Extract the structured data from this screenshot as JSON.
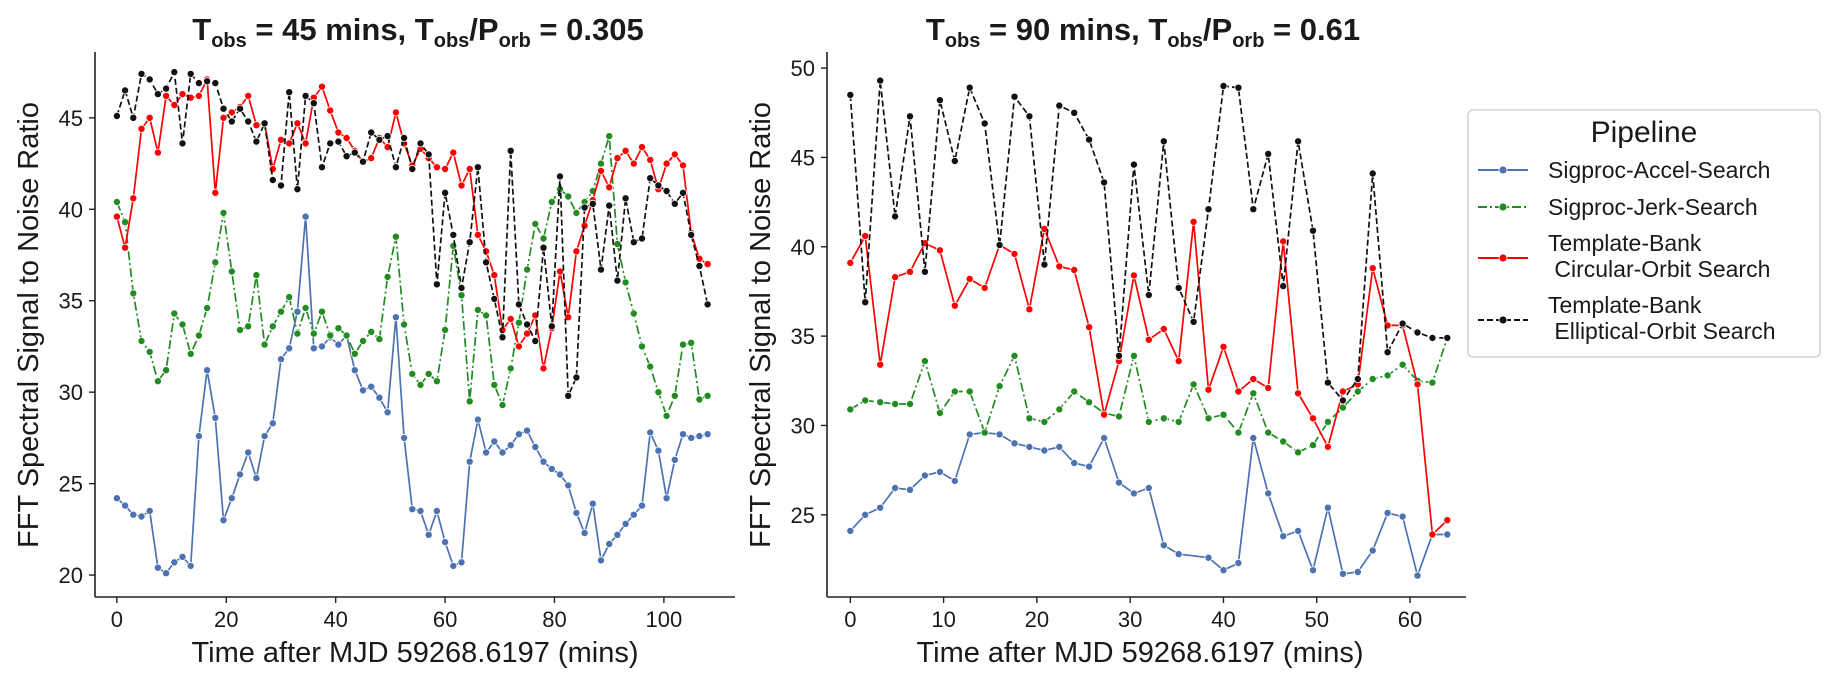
{
  "chart_data": [
    {
      "type": "line",
      "title": {
        "main": "T",
        "sub1": "obs",
        "mid": " = 45 mins, T",
        "sub2": "obs",
        "slash": "/P",
        "sub3": "orb",
        "end": " = 0.305"
      },
      "xlabel": "Time after MJD 59268.6197 (mins)",
      "ylabel": "FFT Spectral Signal to Noise Ratio",
      "xlim": [
        -4,
        113
      ],
      "ylim": [
        18.8,
        48.6
      ],
      "xticks": [
        0,
        20,
        40,
        60,
        80,
        100
      ],
      "yticks": [
        20,
        25,
        30,
        35,
        40,
        45
      ],
      "grid": false,
      "series": [
        {
          "name": "Sigproc-Accel-Search",
          "color": "#4c72b0",
          "dash": "solid",
          "marker": "circle",
          "x": [
            0,
            1.5,
            3,
            4.5,
            6,
            7.5,
            9,
            10.5,
            12,
            13.5,
            15,
            16.5,
            18,
            19.5,
            21,
            22.5,
            24,
            25.5,
            27,
            28.5,
            30,
            31.5,
            33,
            34.5,
            36,
            37.5,
            39,
            40.5,
            42,
            43.5,
            45,
            46.5,
            48,
            49.5,
            51,
            52.5,
            54,
            55.5,
            57,
            58.5,
            60,
            61.5,
            63,
            64.5,
            66,
            67.5,
            69,
            70.5,
            72,
            73.5,
            75,
            76.5,
            78,
            79.5,
            81,
            82.5,
            84,
            85.5,
            87,
            88.5,
            90,
            91.5,
            93,
            94.5,
            96,
            97.5,
            99,
            100.5,
            102,
            103.5,
            105,
            106.5,
            108
          ],
          "values": [
            24.2,
            23.8,
            23.3,
            23.2,
            23.5,
            20.4,
            20.1,
            20.7,
            21.0,
            20.5,
            27.6,
            31.2,
            28.6,
            23.0,
            24.2,
            25.5,
            26.7,
            25.3,
            27.6,
            28.3,
            31.8,
            32.4,
            34.4,
            39.6,
            32.4,
            32.5,
            33.0,
            32.6,
            33.1,
            31.2,
            30.1,
            30.3,
            29.7,
            28.9,
            34.1,
            27.5,
            23.6,
            23.5,
            22.2,
            23.5,
            21.8,
            20.5,
            20.7,
            26.2,
            28.5,
            26.7,
            27.3,
            26.7,
            27.1,
            27.7,
            27.9,
            27.0,
            26.2,
            25.8,
            25.5,
            24.9,
            23.4,
            22.3,
            23.9,
            20.8,
            21.7,
            22.2,
            22.8,
            23.3,
            23.8,
            27.8,
            26.8,
            24.2,
            26.3,
            27.7,
            27.5,
            27.6,
            27.7
          ]
        },
        {
          "name": "Sigproc-Jerk-Search",
          "color": "#228b22",
          "dash": "dashdot",
          "marker": "circle",
          "x": [
            0,
            1.5,
            3,
            4.5,
            6,
            7.5,
            9,
            10.5,
            12,
            13.5,
            15,
            16.5,
            18,
            19.5,
            21,
            22.5,
            24,
            25.5,
            27,
            28.5,
            30,
            31.5,
            33,
            34.5,
            36,
            37.5,
            39,
            40.5,
            42,
            43.5,
            45,
            46.5,
            48,
            49.5,
            51,
            52.5,
            54,
            55.5,
            57,
            58.5,
            60,
            61.5,
            63,
            64.5,
            66,
            67.5,
            69,
            70.5,
            72,
            73.5,
            75,
            76.5,
            78,
            79.5,
            81,
            82.5,
            84,
            85.5,
            87,
            88.5,
            90,
            91.5,
            93,
            94.5,
            96,
            97.5,
            99,
            100.5,
            102,
            103.5,
            105,
            106.5,
            108
          ],
          "values": [
            40.4,
            39.3,
            35.4,
            32.8,
            32.2,
            30.6,
            31.2,
            34.3,
            33.7,
            32.1,
            33.1,
            34.6,
            37.1,
            39.8,
            36.6,
            33.4,
            33.6,
            36.4,
            32.6,
            33.6,
            34.4,
            35.2,
            33.2,
            34.6,
            33.2,
            34.4,
            33.1,
            33.5,
            33.1,
            32.1,
            32.8,
            33.3,
            32.9,
            36.3,
            38.5,
            33.7,
            31.0,
            30.4,
            31.0,
            30.6,
            33.4,
            38.0,
            35.3,
            29.5,
            34.5,
            34.2,
            30.4,
            29.3,
            31.3,
            33.8,
            36.7,
            39.2,
            38.4,
            40.4,
            41.1,
            40.7,
            39.8,
            40.4,
            41.0,
            42.5,
            44.0,
            38.1,
            36.0,
            34.3,
            32.5,
            31.4,
            30.0,
            28.7,
            29.8,
            32.6,
            32.7,
            29.6,
            29.8
          ]
        },
        {
          "name": "Template-Bank\n Circular-Orbit Search",
          "color": "#ff0000",
          "dash": "solid",
          "marker": "circle",
          "x": [
            0,
            1.5,
            3,
            4.5,
            6,
            7.5,
            9,
            10.5,
            12,
            13.5,
            15,
            16.5,
            18,
            19.5,
            21,
            22.5,
            24,
            25.5,
            27,
            28.5,
            30,
            31.5,
            33,
            34.5,
            36,
            37.5,
            39,
            40.5,
            42,
            43.5,
            45,
            46.5,
            48,
            49.5,
            51,
            52.5,
            54,
            55.5,
            57,
            58.5,
            60,
            61.5,
            63,
            64.5,
            66,
            67.5,
            69,
            70.5,
            72,
            73.5,
            75,
            76.5,
            78,
            79.5,
            81,
            82.5,
            84,
            85.5,
            87,
            88.5,
            90,
            91.5,
            93,
            94.5,
            96,
            97.5,
            99,
            100.5,
            102,
            103.5,
            105,
            106.5,
            108
          ],
          "values": [
            39.6,
            37.9,
            40.6,
            44.4,
            45.0,
            43.1,
            46.2,
            45.7,
            46.3,
            46.1,
            46.2,
            47.1,
            40.9,
            45.0,
            45.3,
            45.6,
            46.2,
            44.6,
            44.7,
            42.2,
            43.8,
            43.6,
            44.7,
            43.6,
            46.1,
            46.7,
            45.4,
            44.2,
            43.9,
            43.2,
            42.6,
            42.8,
            43.9,
            43.4,
            45.3,
            43.6,
            42.4,
            43.3,
            42.8,
            42.3,
            42.2,
            43.1,
            41.3,
            42.2,
            38.6,
            37.7,
            36.4,
            33.4,
            34.0,
            32.5,
            33.2,
            34.2,
            31.3,
            33.5,
            36.6,
            34.1,
            37.7,
            39.1,
            40.5,
            42.1,
            41.2,
            42.8,
            43.2,
            42.5,
            43.4,
            42.7,
            41.1,
            42.5,
            43.0,
            42.4,
            38.7,
            37.3,
            37.0
          ]
        },
        {
          "name": "Template-Bank\n Elliptical-Orbit Search",
          "color": "#111111",
          "dash": "dashed",
          "marker": "circle",
          "x": [
            0,
            1.5,
            3,
            4.5,
            6,
            7.5,
            9,
            10.5,
            12,
            13.5,
            15,
            16.5,
            18,
            19.5,
            21,
            22.5,
            24,
            25.5,
            27,
            28.5,
            30,
            31.5,
            33,
            34.5,
            36,
            37.5,
            39,
            40.5,
            42,
            43.5,
            45,
            46.5,
            48,
            49.5,
            51,
            52.5,
            54,
            55.5,
            57,
            58.5,
            60,
            61.5,
            63,
            64.5,
            66,
            67.5,
            69,
            70.5,
            72,
            73.5,
            75,
            76.5,
            78,
            79.5,
            81,
            82.5,
            84,
            85.5,
            87,
            88.5,
            90,
            91.5,
            93,
            94.5,
            96,
            97.5,
            99,
            100.5,
            102,
            103.5,
            105,
            106.5,
            108
          ],
          "values": [
            45.1,
            46.5,
            45.0,
            47.4,
            47.1,
            46.3,
            46.6,
            47.5,
            43.6,
            47.4,
            46.9,
            47.0,
            46.9,
            45.5,
            44.8,
            45.5,
            44.8,
            43.7,
            44.7,
            41.6,
            41.3,
            46.4,
            41.1,
            46.2,
            45.8,
            42.3,
            43.6,
            43.7,
            42.9,
            43.1,
            42.6,
            44.2,
            43.8,
            44.0,
            42.3,
            43.9,
            42.2,
            43.6,
            43.0,
            35.9,
            40.9,
            38.6,
            35.7,
            38.2,
            42.3,
            37.1,
            35.1,
            33.0,
            43.2,
            34.8,
            33.7,
            32.8,
            37.9,
            33.6,
            41.8,
            29.8,
            30.8,
            40.1,
            40.3,
            36.7,
            40.2,
            36.1,
            40.6,
            38.2,
            38.4,
            41.7,
            41.3,
            41.0,
            40.3,
            40.9,
            38.6,
            36.9,
            34.8
          ]
        }
      ]
    },
    {
      "type": "line",
      "title": {
        "main": "T",
        "sub1": "obs",
        "mid": " = 90 mins, T",
        "sub2": "obs",
        "slash": "/P",
        "sub3": "orb",
        "end": " = 0.61"
      },
      "xlabel": "Time after MJD 59268.6197 (mins)",
      "ylabel": "FFT Spectral Signal to Noise Ratio",
      "xlim": [
        -2.5,
        66
      ],
      "ylim": [
        20.4,
        50.9
      ],
      "xticks": [
        0,
        10,
        20,
        30,
        40,
        50,
        60
      ],
      "yticks": [
        25,
        30,
        35,
        40,
        45,
        50
      ],
      "grid": false,
      "series": [
        {
          "name": "Sigproc-Accel-Search",
          "color": "#4c72b0",
          "dash": "solid",
          "marker": "circle",
          "x": [
            0,
            1.6,
            3.2,
            4.8,
            6.4,
            8.0,
            9.6,
            11.2,
            12.8,
            14.4,
            16.0,
            17.6,
            19.2,
            20.8,
            22.4,
            24.0,
            25.6,
            27.2,
            28.8,
            30.4,
            32.0,
            33.6,
            35.2,
            38.4,
            40.0,
            41.6,
            43.2,
            44.8,
            46.4,
            48.0,
            49.6,
            51.2,
            52.8,
            54.4,
            56.0,
            57.6,
            59.2,
            60.8,
            62.4,
            64.0
          ],
          "values": [
            24.1,
            25.0,
            25.4,
            26.5,
            26.4,
            27.2,
            27.4,
            26.9,
            29.5,
            29.6,
            29.5,
            29.0,
            28.8,
            28.6,
            28.8,
            27.9,
            27.7,
            29.3,
            26.8,
            26.2,
            26.5,
            23.3,
            22.8,
            22.6,
            21.9,
            22.3,
            29.3,
            26.2,
            23.8,
            24.1,
            21.9,
            25.4,
            21.7,
            21.8,
            23.0,
            25.1,
            24.9,
            21.6,
            23.9,
            23.9
          ]
        },
        {
          "name": "Sigproc-Jerk-Search",
          "color": "#228b22",
          "dash": "dashdot",
          "marker": "circle",
          "x": [
            0,
            1.6,
            3.2,
            4.8,
            6.4,
            8.0,
            9.6,
            11.2,
            12.8,
            14.4,
            16.0,
            17.6,
            19.2,
            20.8,
            22.4,
            24.0,
            25.6,
            27.2,
            28.8,
            30.4,
            32.0,
            33.6,
            35.2,
            36.8,
            38.4,
            40.0,
            41.6,
            43.2,
            44.8,
            46.4,
            48.0,
            49.6,
            51.2,
            52.8,
            54.4,
            56.0,
            57.6,
            59.2,
            60.8,
            62.4,
            64.0
          ],
          "values": [
            30.9,
            31.4,
            31.3,
            31.2,
            31.2,
            33.6,
            30.7,
            31.9,
            31.9,
            29.6,
            32.2,
            33.9,
            30.4,
            30.2,
            30.9,
            31.9,
            31.3,
            30.7,
            30.5,
            33.9,
            30.2,
            30.4,
            30.2,
            32.3,
            30.4,
            30.6,
            29.6,
            31.8,
            29.6,
            29.1,
            28.5,
            28.9,
            30.2,
            31.0,
            31.9,
            32.6,
            32.8,
            33.4,
            32.5,
            32.4,
            34.9
          ]
        },
        {
          "name": "Template-Bank\n Circular-Orbit Search",
          "color": "#ff0000",
          "dash": "solid",
          "marker": "circle",
          "x": [
            0,
            1.6,
            3.2,
            4.8,
            6.4,
            8.0,
            9.6,
            11.2,
            12.8,
            14.4,
            16.0,
            17.6,
            19.2,
            20.8,
            22.4,
            24.0,
            25.6,
            27.2,
            28.8,
            30.4,
            32.0,
            33.6,
            35.2,
            36.8,
            38.4,
            40.0,
            41.6,
            43.2,
            44.8,
            46.4,
            48.0,
            49.6,
            51.2,
            52.8,
            54.4,
            56.0,
            57.6,
            59.2,
            60.8,
            62.4,
            64.0
          ],
          "values": [
            39.1,
            40.6,
            33.4,
            38.3,
            38.6,
            40.2,
            39.8,
            36.7,
            38.2,
            37.7,
            40.1,
            39.6,
            36.5,
            41.0,
            38.9,
            38.7,
            35.5,
            30.6,
            33.6,
            38.4,
            34.8,
            35.4,
            33.6,
            41.4,
            32.0,
            34.4,
            31.9,
            32.6,
            32.1,
            40.3,
            31.8,
            30.4,
            28.8,
            31.9,
            32.3,
            38.8,
            35.6,
            35.6,
            32.3,
            23.9,
            24.7
          ]
        },
        {
          "name": "Template-Bank\n Elliptical-Orbit Search",
          "color": "#111111",
          "dash": "dashed",
          "marker": "circle",
          "x": [
            0,
            1.6,
            3.2,
            4.8,
            6.4,
            8.0,
            9.6,
            11.2,
            12.8,
            14.4,
            16.0,
            17.6,
            19.2,
            20.8,
            22.4,
            24.0,
            25.6,
            27.2,
            28.8,
            30.4,
            32.0,
            33.6,
            35.2,
            36.8,
            38.4,
            40.0,
            41.6,
            43.2,
            44.8,
            46.4,
            48.0,
            49.6,
            51.2,
            52.8,
            54.4,
            56.0,
            57.6,
            59.2,
            60.8,
            62.4,
            64.0
          ],
          "values": [
            48.5,
            36.9,
            49.3,
            41.7,
            47.3,
            38.6,
            48.2,
            44.8,
            48.9,
            46.9,
            40.1,
            48.4,
            47.3,
            39.0,
            47.9,
            47.5,
            46.0,
            43.6,
            33.9,
            44.6,
            37.3,
            45.9,
            37.7,
            35.8,
            42.1,
            49.0,
            48.9,
            42.1,
            45.2,
            37.8,
            45.9,
            40.9,
            32.4,
            31.4,
            32.6,
            44.1,
            34.1,
            35.7,
            35.2,
            34.9,
            34.9
          ]
        }
      ]
    }
  ],
  "legend": {
    "title": "Pipeline",
    "placement": "outside-right",
    "entries": [
      {
        "line1": "Sigproc-Accel-Search",
        "line2": ""
      },
      {
        "line1": "Sigproc-Jerk-Search",
        "line2": ""
      },
      {
        "line1": "Template-Bank",
        "line2": " Circular-Orbit Search"
      },
      {
        "line1": "Template-Bank",
        "line2": " Elliptical-Orbit Search"
      }
    ]
  }
}
